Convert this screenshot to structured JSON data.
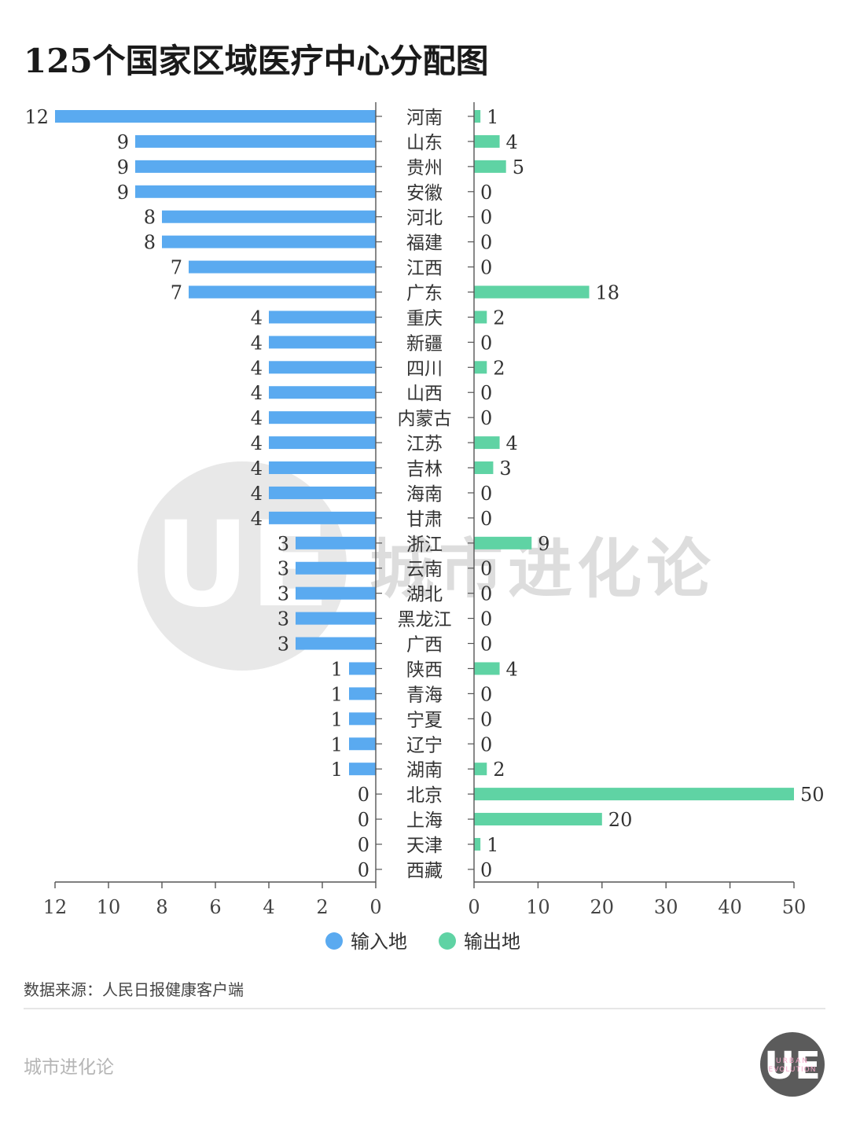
{
  "title": "125个国家区域医疗中心分配图",
  "source": "数据来源：人民日报健康客户端",
  "brand": "城市进化论",
  "watermark": {
    "logo": "UE",
    "text": "城市进化论"
  },
  "footer_logo": {
    "letters": "UE",
    "line1": "URBAN",
    "line2": "EVOLUTION"
  },
  "colors": {
    "input": "#5aaaf0",
    "output": "#5fd3a4",
    "watermark": "#d9d9d9"
  },
  "chart_data": {
    "type": "bar",
    "orientation": "horizontal-butterfly",
    "title": "125个国家区域医疗中心分配图",
    "categories": [
      "河南",
      "山东",
      "贵州",
      "安徽",
      "河北",
      "福建",
      "江西",
      "广东",
      "重庆",
      "新疆",
      "四川",
      "山西",
      "内蒙古",
      "江苏",
      "吉林",
      "海南",
      "甘肃",
      "浙江",
      "云南",
      "湖北",
      "黑龙江",
      "广西",
      "陕西",
      "青海",
      "宁夏",
      "辽宁",
      "湖南",
      "北京",
      "上海",
      "天津",
      "西藏"
    ],
    "series": [
      {
        "name": "输入地",
        "values": [
          12,
          9,
          9,
          9,
          8,
          8,
          7,
          7,
          4,
          4,
          4,
          4,
          4,
          4,
          4,
          4,
          4,
          3,
          3,
          3,
          3,
          3,
          1,
          1,
          1,
          1,
          1,
          0,
          0,
          0,
          0
        ]
      },
      {
        "name": "输出地",
        "values": [
          1,
          4,
          5,
          0,
          0,
          0,
          0,
          18,
          2,
          0,
          2,
          0,
          0,
          4,
          3,
          0,
          0,
          9,
          0,
          0,
          0,
          0,
          4,
          0,
          0,
          0,
          2,
          50,
          20,
          1,
          0
        ]
      }
    ],
    "left_axis": {
      "range": [
        0,
        12
      ],
      "reversed": true,
      "ticks": [
        12,
        10,
        8,
        6,
        4,
        2,
        0
      ]
    },
    "right_axis": {
      "range": [
        0,
        50
      ],
      "ticks": [
        0,
        10,
        20,
        30,
        40,
        50
      ]
    },
    "legend": {
      "placement": "bottom-center",
      "items": [
        "输入地",
        "输出地"
      ]
    },
    "grid": false
  }
}
